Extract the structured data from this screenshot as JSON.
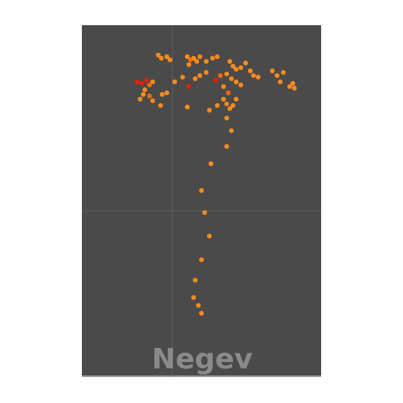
{
  "map": {
    "label": "Negev"
  }
}
